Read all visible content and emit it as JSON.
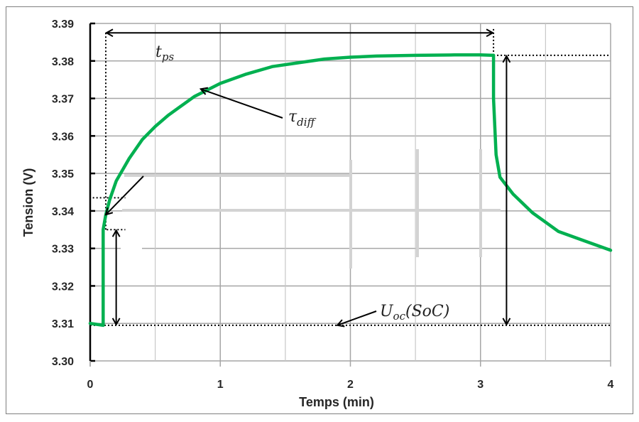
{
  "chart_data": {
    "type": "line",
    "title": "",
    "xlabel": "Temps (min)",
    "ylabel": "Tension (V)",
    "xlim": [
      0,
      4
    ],
    "ylim": [
      3.3,
      3.39
    ],
    "x_ticks": [
      "0",
      "1",
      "2",
      "3",
      "4"
    ],
    "y_ticks": [
      "3.30",
      "3.31",
      "3.32",
      "3.33",
      "3.34",
      "3.35",
      "3.36",
      "3.37",
      "3.38",
      "3.39"
    ],
    "grid": true,
    "x_minor_grid": [
      0.5,
      1.5,
      2.5,
      3.5
    ],
    "series": [
      {
        "name": "Tension",
        "color": "#00b050",
        "x": [
          0,
          0.1,
          0.1,
          0.12,
          0.15,
          0.2,
          0.3,
          0.4,
          0.5,
          0.6,
          0.8,
          1.0,
          1.2,
          1.4,
          1.6,
          1.8,
          2.0,
          2.2,
          2.5,
          2.8,
          3.0,
          3.1,
          3.1,
          3.12,
          3.15,
          3.25,
          3.4,
          3.6,
          3.8,
          4.0
        ],
        "y": [
          3.31,
          3.3095,
          3.335,
          3.339,
          3.343,
          3.348,
          3.354,
          3.359,
          3.3625,
          3.3655,
          3.3705,
          3.374,
          3.3765,
          3.3785,
          3.3795,
          3.3805,
          3.381,
          3.3813,
          3.3815,
          3.3816,
          3.3816,
          3.3815,
          3.37,
          3.355,
          3.349,
          3.3445,
          3.3395,
          3.3345,
          3.332,
          3.3295
        ]
      }
    ],
    "annotations": [
      {
        "label": "t_ps",
        "text_main": "t",
        "text_sub": "ps",
        "type": "double-arrow-horizontal",
        "x_from": 0.12,
        "x_to": 3.1,
        "y": 3.3875
      },
      {
        "label": "tau_diff",
        "text_main": "τ",
        "text_sub": "diff",
        "type": "arrow",
        "points_to": [
          0.85,
          3.3725
        ]
      },
      {
        "label": "U_oc(SoC)",
        "text_main": "U",
        "text_sub": "oc",
        "text_suffix": "(SoC)",
        "type": "arrow",
        "points_to": [
          1.9,
          3.3095
        ]
      },
      {
        "label": "unlabeled-arrow",
        "type": "arrow",
        "points_to": [
          0.12,
          3.339
        ]
      },
      {
        "type": "double-arrow-vertical",
        "x": 0.2,
        "y_from": 3.3095,
        "y_to": 3.335
      },
      {
        "type": "double-arrow-vertical",
        "x": 3.2,
        "y_from": 3.3095,
        "y_to": 3.3815
      },
      {
        "type": "dotted-hline",
        "y": 3.3095,
        "x_from": 0,
        "x_to": 4
      },
      {
        "type": "dotted-hline",
        "y": 3.3815,
        "x_from": 3.1,
        "x_to": 4
      },
      {
        "type": "dotted-hline",
        "y": 3.335,
        "x_from": 0.1,
        "x_to": 0.27
      },
      {
        "type": "dotted-hline",
        "y": 3.3435,
        "x_from": 0.02,
        "x_to": 0.27
      },
      {
        "type": "dotted-vline",
        "x": 0.12,
        "y_from": 3.335,
        "y_to": 3.3875
      },
      {
        "type": "dotted-vline",
        "x": 3.1,
        "y_from": 3.3815,
        "y_to": 3.3885
      }
    ]
  },
  "labels": {
    "tps_main": "t",
    "tps_sub": "ps",
    "tau_main": "τ",
    "tau_sub": "diff",
    "uoc_main": "U",
    "uoc_sub": "oc",
    "uoc_suffix": "(SoC)"
  }
}
